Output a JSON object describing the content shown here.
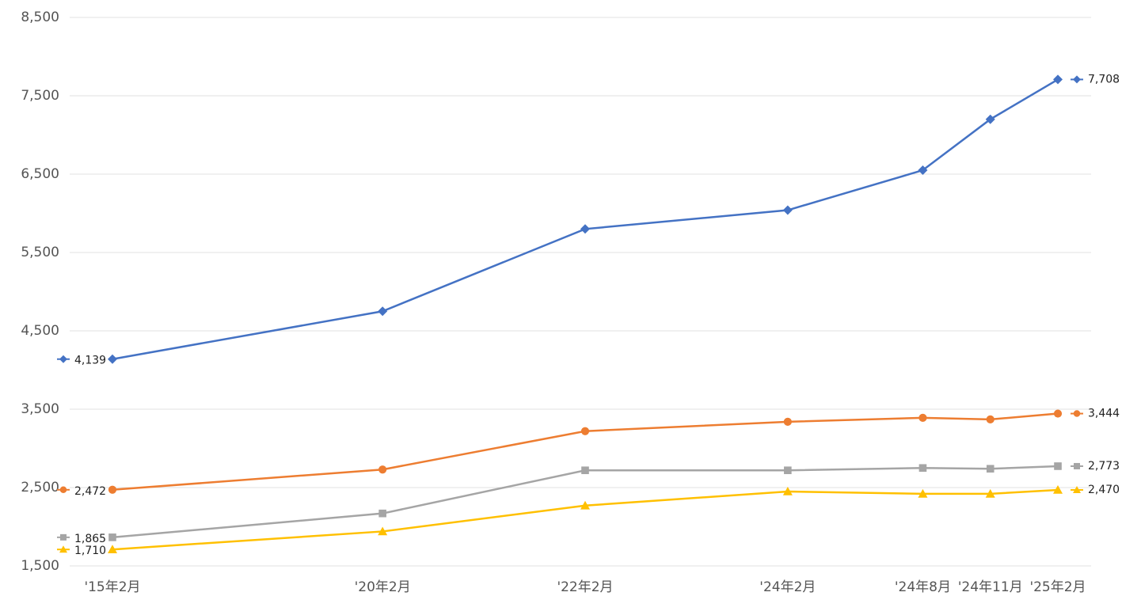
{
  "chart_data": {
    "type": "line",
    "categories": [
      "'15年2月",
      null,
      null,
      null,
      "'20年2月",
      null,
      null,
      "'22年2月",
      null,
      null,
      "'24年2月",
      null,
      "'24年8月",
      "'24年11月",
      "'25年2月"
    ],
    "span_gaps": true,
    "series": [
      {
        "color": "#4472c4",
        "marker": "diamond",
        "values": [
          4139,
          null,
          null,
          null,
          4750,
          null,
          null,
          5800,
          null,
          null,
          6040,
          null,
          6550,
          7200,
          7708
        ],
        "value_labels": [
          "4,139",
          null,
          null,
          null,
          null,
          null,
          null,
          null,
          null,
          null,
          null,
          null,
          null,
          null,
          "7,708"
        ]
      },
      {
        "color": "#ed7d31",
        "marker": "circle",
        "values": [
          2472,
          null,
          null,
          null,
          2730,
          null,
          null,
          3220,
          null,
          null,
          3340,
          null,
          3390,
          3370,
          3444
        ],
        "value_labels": [
          "2,472",
          null,
          null,
          null,
          null,
          null,
          null,
          null,
          null,
          null,
          null,
          null,
          null,
          null,
          "3,444"
        ]
      },
      {
        "color": "#a5a5a5",
        "marker": "square",
        "values": [
          1865,
          null,
          null,
          null,
          2170,
          null,
          null,
          2720,
          null,
          null,
          2720,
          null,
          2750,
          2740,
          2773
        ],
        "value_labels": [
          "1,865",
          null,
          null,
          null,
          null,
          null,
          null,
          null,
          null,
          null,
          null,
          null,
          null,
          null,
          "2,773"
        ]
      },
      {
        "color": "#ffc000",
        "marker": "triangle",
        "values": [
          1710,
          null,
          null,
          null,
          1940,
          null,
          null,
          2270,
          null,
          null,
          2450,
          null,
          2420,
          2420,
          2470
        ],
        "value_labels": [
          "1,710",
          null,
          null,
          null,
          null,
          null,
          null,
          null,
          null,
          null,
          null,
          null,
          null,
          null,
          "2,470"
        ]
      }
    ],
    "ylim": [
      1500,
      8500
    ],
    "yticks": [
      {
        "value": 1500,
        "label": "1,500"
      },
      {
        "value": 2500,
        "label": "2,500"
      },
      {
        "value": 3500,
        "label": "3,500"
      },
      {
        "value": 4500,
        "label": "4,500"
      },
      {
        "value": 5500,
        "label": "5,500"
      },
      {
        "value": 6500,
        "label": "6,500"
      },
      {
        "value": 7500,
        "label": "7,500"
      },
      {
        "value": 8500,
        "label": "8,500"
      }
    ],
    "grid": true
  }
}
